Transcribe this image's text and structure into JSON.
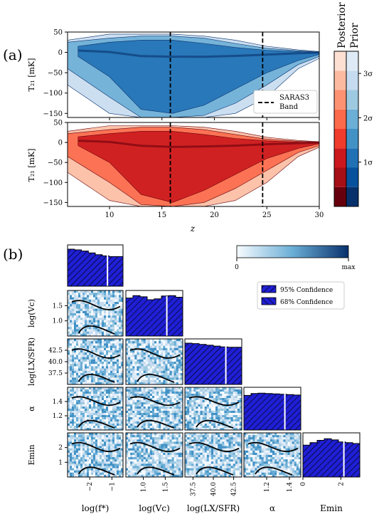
{
  "chart_data": [
    {
      "panel": "(a)",
      "type": "area",
      "subplots": [
        {
          "name": "Prior",
          "ylabel": "T_21 [mK]"
        },
        {
          "name": "Posterior",
          "ylabel": "T_21 [mK]"
        }
      ],
      "xlabel": "z",
      "xlim": [
        6,
        30
      ],
      "ylim": [
        -160,
        50
      ],
      "xticks": [
        "10",
        "15",
        "20",
        "25",
        "30"
      ],
      "yticks": [
        "50",
        "0",
        "−50",
        "−100",
        "−150"
      ],
      "vlines": [
        15.8,
        24.6
      ],
      "legend": {
        "label_line1": "SARAS3",
        "label_line2": "Band",
        "position": "lower right"
      },
      "colorbar": {
        "headers": [
          "Posterior",
          "Prior"
        ],
        "ticks": [
          "1σ",
          "2σ",
          "3σ"
        ],
        "tick_values": [
          1,
          2,
          3
        ]
      },
      "prior_bands": [
        {
          "sigma": 1,
          "x": [
            7,
            10,
            13,
            16,
            19,
            22,
            25,
            28,
            30
          ],
          "lower": [
            -10,
            -60,
            -140,
            -150,
            -130,
            -90,
            -50,
            -20,
            -5
          ],
          "upper": [
            15,
            25,
            30,
            30,
            22,
            12,
            5,
            2,
            0
          ]
        },
        {
          "sigma": 2,
          "x": [
            6,
            10,
            13,
            16,
            19,
            22,
            25,
            28,
            30
          ],
          "lower": [
            -40,
            -110,
            -160,
            -160,
            -155,
            -125,
            -80,
            -30,
            -10
          ],
          "upper": [
            25,
            35,
            40,
            40,
            35,
            22,
            10,
            4,
            1
          ]
        },
        {
          "sigma": 3,
          "x": [
            6,
            10,
            13,
            16,
            19,
            22,
            25,
            28,
            30
          ],
          "lower": [
            -80,
            -150,
            -160,
            -160,
            -160,
            -150,
            -110,
            -40,
            -15
          ],
          "upper": [
            30,
            45,
            45,
            45,
            40,
            30,
            15,
            6,
            2
          ]
        }
      ],
      "posterior_bands": [
        {
          "sigma": 1,
          "x": [
            7,
            10,
            13,
            16,
            19,
            22,
            25,
            28,
            30
          ],
          "lower": [
            -8,
            -50,
            -130,
            -150,
            -120,
            -80,
            -40,
            -15,
            -3
          ],
          "upper": [
            14,
            22,
            28,
            28,
            20,
            10,
            4,
            1,
            0
          ]
        },
        {
          "sigma": 2,
          "x": [
            6,
            10,
            13,
            16,
            19,
            22,
            25,
            28,
            30
          ],
          "lower": [
            -35,
            -100,
            -155,
            -160,
            -150,
            -115,
            -70,
            -25,
            -8
          ],
          "upper": [
            22,
            32,
            38,
            38,
            32,
            20,
            8,
            3,
            1
          ]
        },
        {
          "sigma": 3,
          "x": [
            6,
            10,
            13,
            16,
            19,
            22,
            25,
            28,
            30
          ],
          "lower": [
            -75,
            -145,
            -160,
            -160,
            -160,
            -145,
            -100,
            -35,
            -12
          ],
          "upper": [
            28,
            42,
            42,
            42,
            38,
            28,
            13,
            5,
            2
          ]
        }
      ]
    },
    {
      "panel": "(b)",
      "type": "heatmap",
      "parameters": [
        {
          "label": "log(f_*)",
          "ticks": [
            "−2",
            "−1"
          ],
          "tick_values": [
            -2,
            -1
          ],
          "range": [
            -3,
            -0.5
          ]
        },
        {
          "label": "log(V_c)",
          "ticks": [
            "1.0",
            "1.5"
          ],
          "tick_values": [
            1.0,
            1.5
          ],
          "range": [
            0.6,
            1.9
          ]
        },
        {
          "label": "log(L_X/SFR)",
          "ticks": [
            "37.5",
            "40.0",
            "42.5"
          ],
          "tick_values": [
            37.5,
            40.0,
            42.5
          ],
          "range": [
            36.5,
            43.5
          ]
        },
        {
          "label": "α",
          "ticks": [
            "1.2",
            "1.4"
          ],
          "tick_values": [
            1.2,
            1.4
          ],
          "range": [
            1.0,
            1.5
          ]
        },
        {
          "label": "E_min",
          "ticks": [
            "0",
            "2"
          ],
          "tick_values": [
            0,
            2
          ],
          "range": [
            0,
            3
          ]
        }
      ],
      "y_tick_labels": {
        "log(V_c)": [
          "1.5",
          "1.0"
        ],
        "log(L_X/SFR)": [
          "42.5",
          "40.0",
          "37.5"
        ],
        "α": [
          "1.4",
          "1.2"
        ],
        "E_min": [
          "2",
          "1"
        ]
      },
      "colorbar": {
        "min_label": "0",
        "max_label": "max"
      },
      "legend": [
        "95% Confidence",
        "68% Confidence"
      ],
      "marginals": [
        {
          "parameter": "log(f_*)",
          "density": [
            1.0,
            0.98,
            0.95,
            0.9,
            0.85,
            0.82,
            0.8,
            0.8
          ]
        },
        {
          "parameter": "log(V_c)",
          "density": [
            0.92,
            0.98,
            0.95,
            0.88,
            0.9,
            0.97,
            0.98,
            0.94
          ]
        },
        {
          "parameter": "log(L_X/SFR)",
          "density": [
            1.0,
            0.99,
            0.97,
            0.95,
            0.93,
            0.91,
            0.9,
            0.9
          ]
        },
        {
          "parameter": "α",
          "density": [
            0.9,
            0.95,
            0.96,
            0.95,
            0.94,
            0.93,
            0.92,
            0.91
          ]
        },
        {
          "parameter": "E_min",
          "density": [
            0.8,
            0.86,
            0.92,
            0.96,
            0.93,
            0.88,
            0.86,
            0.84
          ]
        }
      ]
    }
  ],
  "labels": {
    "panel_a": "(a)",
    "panel_b": "(b)",
    "a_xlabel": "z",
    "a_ylabel": "T₂₁ [mK]",
    "b_xlabels": [
      "log(f*)",
      "log(Vc)",
      "log(LX/SFR)",
      "α",
      "Emin"
    ],
    "b_ylabels": [
      "log(Vc)",
      "log(LX/SFR)",
      "α",
      "Emin"
    ]
  },
  "colors": {
    "prior": [
      "#08306b",
      "#2171b5",
      "#6baed6",
      "#c6dbef"
    ],
    "posterior": [
      "#67000d",
      "#cb181d",
      "#fb6a4a",
      "#fcbba1"
    ],
    "hist_fill": "#1f1fd6",
    "heat_low": "#f7fbff",
    "heat_high": "#08306b",
    "vline": "#000000"
  }
}
